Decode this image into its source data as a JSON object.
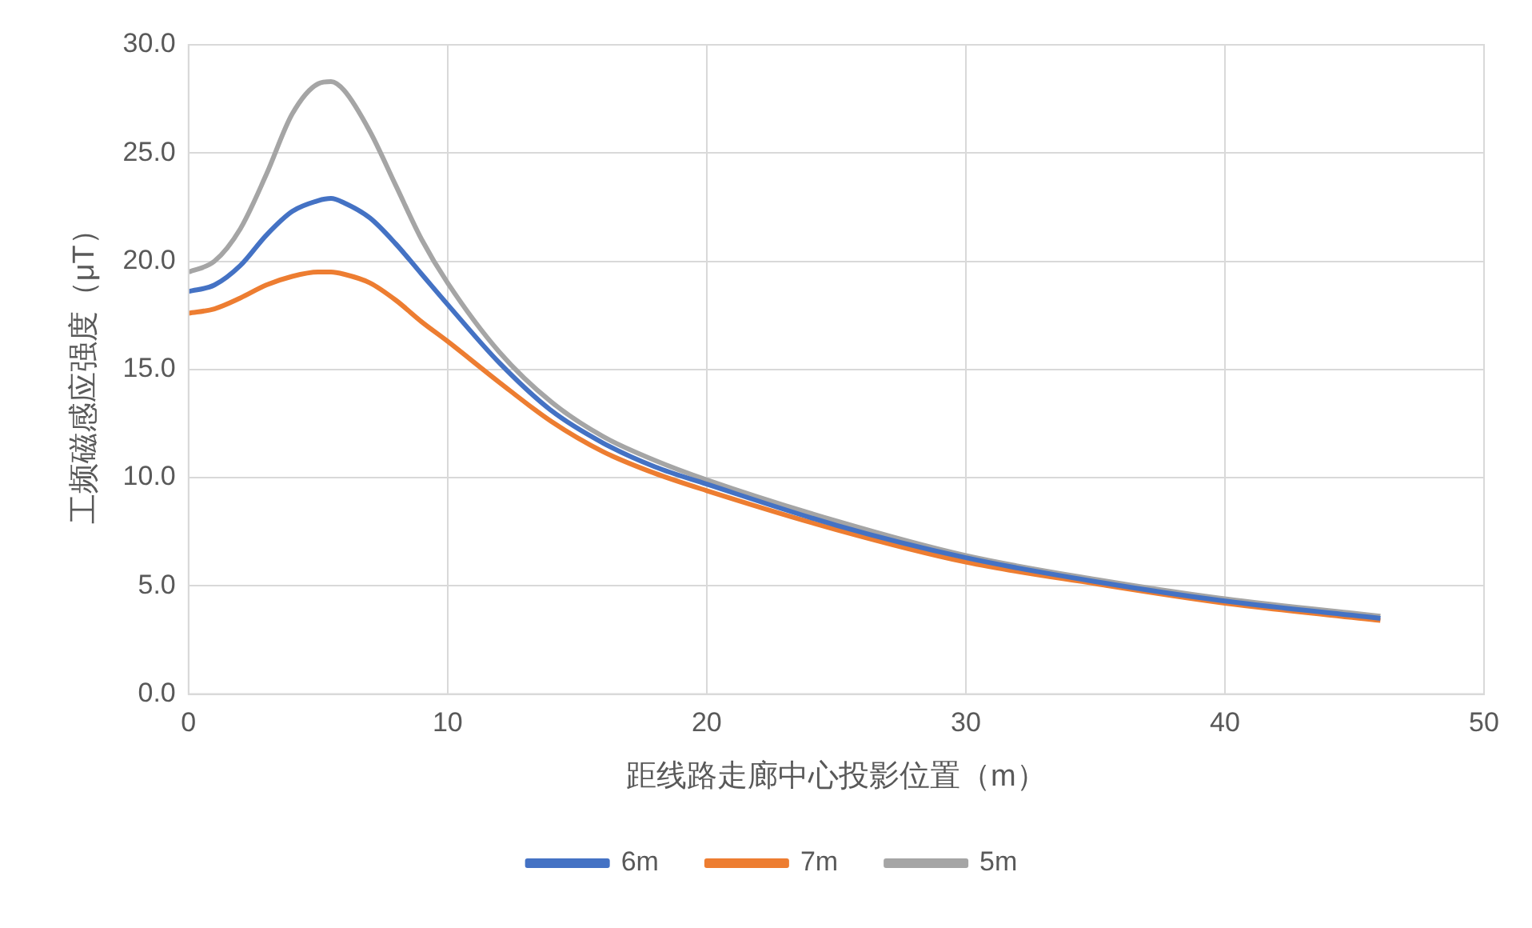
{
  "chart_data": {
    "type": "line",
    "xlabel": "距线路走廊中心投影位置（m）",
    "ylabel": "工频磁感应强度（μT）",
    "x": [
      0,
      1,
      2,
      3,
      4,
      5,
      5.5,
      6,
      7,
      8,
      9,
      10,
      12,
      14,
      16,
      18,
      20,
      25,
      30,
      35,
      40,
      46
    ],
    "series": [
      {
        "name": "6m",
        "color": "#4472c4",
        "values": [
          18.6,
          18.9,
          19.8,
          21.2,
          22.3,
          22.8,
          22.9,
          22.7,
          22.0,
          20.8,
          19.4,
          18.0,
          15.3,
          13.1,
          11.6,
          10.5,
          9.7,
          7.8,
          6.3,
          5.2,
          4.3,
          3.5
        ]
      },
      {
        "name": "7m",
        "color": "#ed7d31",
        "values": [
          17.6,
          17.8,
          18.3,
          18.9,
          19.3,
          19.5,
          19.5,
          19.4,
          19.0,
          18.2,
          17.2,
          16.3,
          14.4,
          12.6,
          11.2,
          10.2,
          9.4,
          7.6,
          6.1,
          5.1,
          4.2,
          3.4
        ]
      },
      {
        "name": "5m",
        "color": "#a5a5a5",
        "values": [
          19.5,
          20.0,
          21.5,
          24.0,
          26.8,
          28.2,
          28.3,
          27.9,
          26.0,
          23.5,
          21.0,
          19.0,
          15.8,
          13.5,
          11.9,
          10.8,
          9.9,
          8.0,
          6.4,
          5.3,
          4.4,
          3.6
        ]
      }
    ],
    "xlim": [
      0,
      50
    ],
    "xticks": [
      0,
      10,
      20,
      30,
      40,
      50
    ],
    "ylim": [
      0,
      30
    ],
    "yticks": [
      {
        "value": 0,
        "label": "0.0"
      },
      {
        "value": 5,
        "label": "5.0"
      },
      {
        "value": 10,
        "label": "10.0"
      },
      {
        "value": 15,
        "label": "15.0"
      },
      {
        "value": 20,
        "label": "20.0"
      },
      {
        "value": 25,
        "label": "25.0"
      },
      {
        "value": 30,
        "label": "30.0"
      }
    ],
    "grid": true,
    "legend": "bottom",
    "marker": "none",
    "line_style": "solid"
  }
}
